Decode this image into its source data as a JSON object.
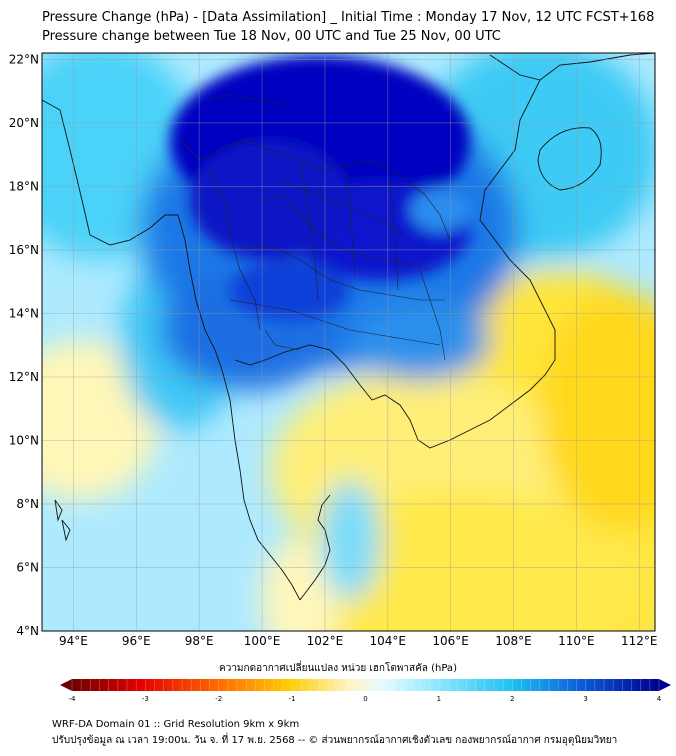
{
  "header": {
    "title": "Pressure Change (hPa) - [Data Assimilation] _ Initial Time : Monday 17 Nov, 12 UTC FCST+168",
    "subtitle": "Pressure change between Tue 18 Nov, 00 UTC and Tue 25 Nov, 00 UTC"
  },
  "map": {
    "lat_labels": [
      "22°N",
      "20°N",
      "18°N",
      "16°N",
      "14°N",
      "12°N",
      "10°N",
      "8°N",
      "6°N",
      "4°N"
    ],
    "lon_labels": [
      "94°E",
      "96°E",
      "98°E",
      "100°E",
      "102°E",
      "104°E",
      "106°E",
      "108°E",
      "110°E",
      "112°E"
    ],
    "lat_values": [
      22,
      20,
      18,
      16,
      14,
      12,
      10,
      8,
      6,
      4
    ],
    "lon_values": [
      94,
      96,
      98,
      100,
      102,
      104,
      106,
      108,
      110,
      112
    ],
    "lat_range": [
      4,
      22.2
    ],
    "lon_range": [
      93,
      112.5
    ],
    "grid": true
  },
  "colorbar": {
    "label": "ความกดอากาศเปลี่ยนแปลง หน่วย เฮกโตพาสคัล (hPa)",
    "ticks": [
      "-4",
      "-3",
      "-2",
      "-1",
      "0",
      "1",
      "2",
      "3",
      "4"
    ],
    "tick_values": [
      -4,
      -3,
      -2,
      -1,
      0,
      1,
      2,
      3,
      4
    ],
    "range": [
      -4,
      4
    ],
    "colors": {
      "strong_negative": "#7a0000",
      "negative": "#ff2a00",
      "weak_negative": "#ffc000",
      "near_zero": "#fff6c8",
      "weak_positive": "#a8ecff",
      "positive": "#22c4f0",
      "strong_positive": "#0008a8"
    }
  },
  "footer": {
    "line1": "WRF-DA Domain 01 :: Grid Resolution 9km x 9km",
    "line2": "ปรับปรุงข้อมูล ณ เวลา 19:00น. วัน จ. ที่ 17 พ.ย. 2568 -- © ส่วนพยากรณ์อากาศเชิงตัวเลข กองพยากรณ์อากาศ กรมอุตุนิยมวิทยา"
  }
}
